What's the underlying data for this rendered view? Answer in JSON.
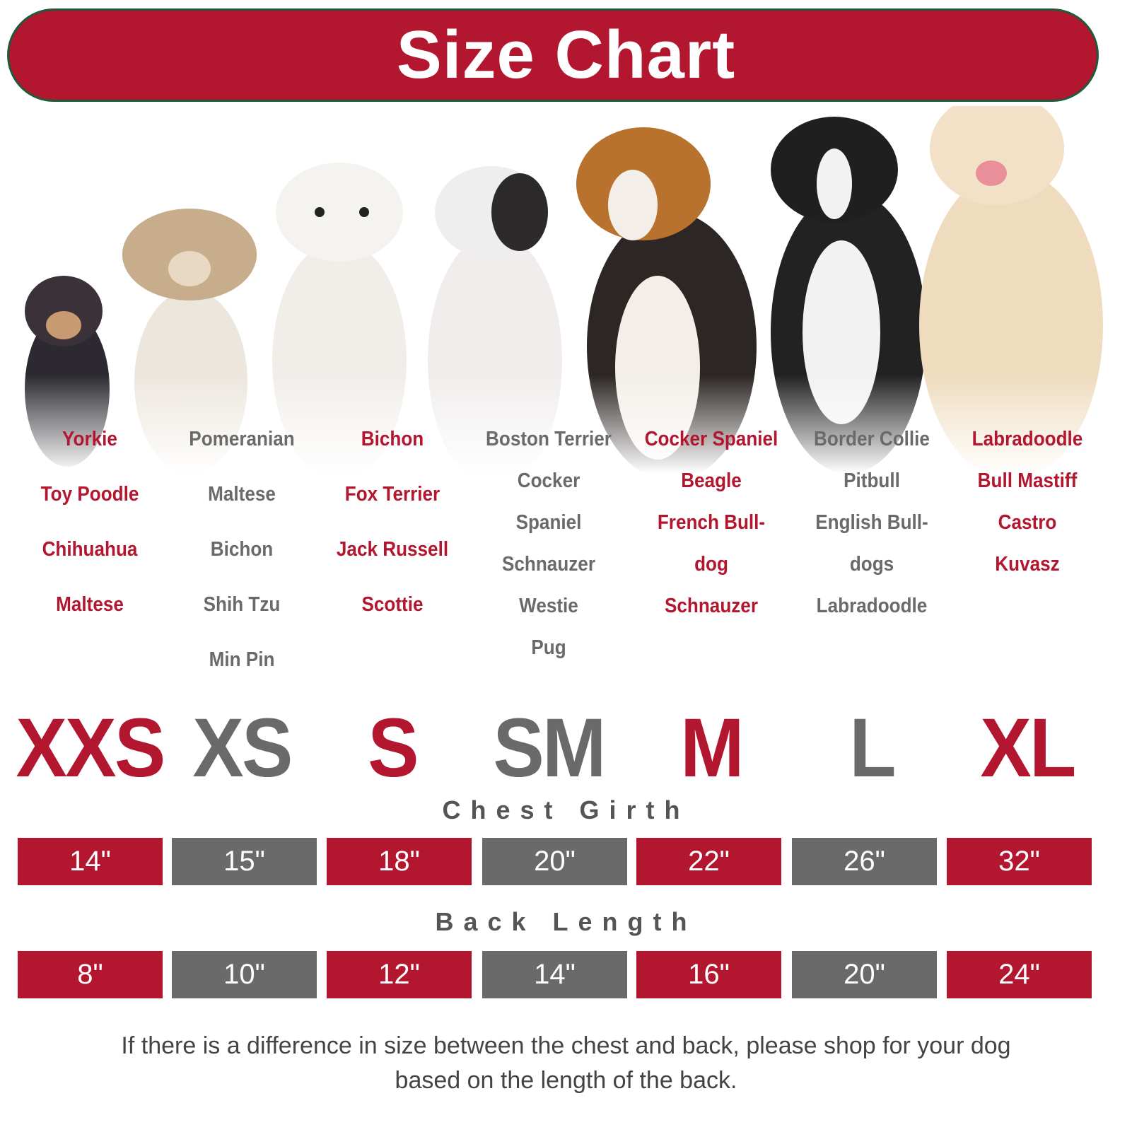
{
  "header": {
    "title": "Size Chart"
  },
  "colors": {
    "accent_red": "#b3162f",
    "accent_gray": "#6a6a6a",
    "banner_border": "#1e5a3a"
  },
  "dogs_image": {
    "icon": "dog-photo-lineup"
  },
  "columns": [
    {
      "size": "XXS",
      "color": "red",
      "chest": "14\"",
      "back": "8\"",
      "breeds": [
        "Yorkie",
        "Toy Poodle",
        "Chihuahua",
        "Maltese"
      ]
    },
    {
      "size": "XS",
      "color": "gray",
      "chest": "15\"",
      "back": "10\"",
      "breeds": [
        "Pomeranian",
        "Maltese",
        "Bichon",
        "Shih Tzu",
        "Min Pin"
      ]
    },
    {
      "size": "S",
      "color": "red",
      "chest": "18\"",
      "back": "12\"",
      "breeds": [
        "Bichon",
        "Fox Terrier",
        "Jack Russell",
        "Scottie"
      ]
    },
    {
      "size": "SM",
      "color": "gray",
      "chest": "20\"",
      "back": "14\"",
      "breeds": [
        "Boston Terrier",
        "Cocker",
        "Spaniel",
        "Schnauzer",
        "Westie",
        "Pug"
      ]
    },
    {
      "size": "M",
      "color": "red",
      "chest": "22\"",
      "back": "16\"",
      "breeds": [
        "Cocker Spaniel",
        "Beagle",
        "French Bull-",
        "dog",
        "Schnauzer"
      ]
    },
    {
      "size": "L",
      "color": "gray",
      "chest": "26\"",
      "back": "20\"",
      "breeds": [
        "Border Collie",
        "Pitbull",
        "English Bull-",
        "dogs",
        "Labradoodle"
      ]
    },
    {
      "size": "XL",
      "color": "red",
      "chest": "32\"",
      "back": "24\"",
      "breeds": [
        "Labradoodle",
        "Bull Mastiff",
        "Castro",
        "Kuvasz"
      ]
    }
  ],
  "labels": {
    "chest": "Chest Girth",
    "back": "Back Length"
  },
  "note": {
    "line1": "If there is a difference in size between the chest and back, please shop for your dog",
    "line2": "based on the length of the back."
  }
}
